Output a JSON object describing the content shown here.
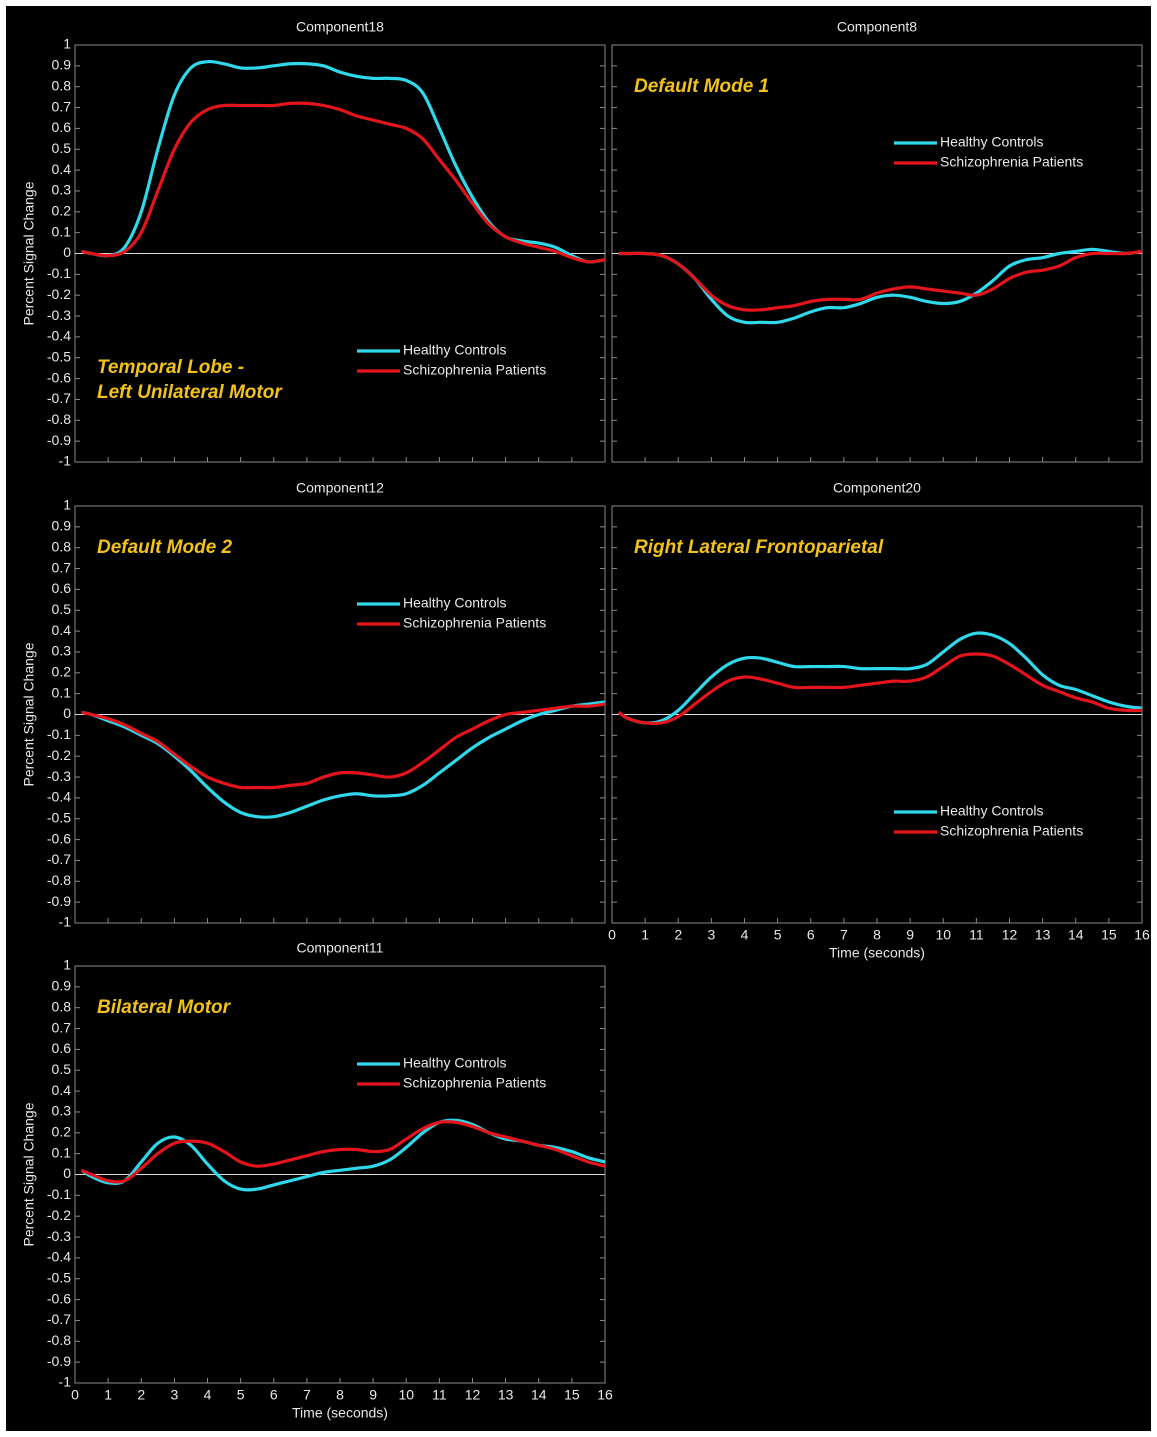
{
  "chart_data": [
    {
      "type": "line",
      "title": "Component18",
      "ylabel": "Percent Signal Change",
      "annotation": [
        "Temporal Lobe -",
        "Left Unilateral Motor"
      ],
      "annotation_position": "lower left",
      "legend": "lower right",
      "show_xtick_labels": false,
      "show_ytick_labels": true,
      "x": [
        0.2,
        0.5,
        1,
        1.5,
        2,
        2.5,
        3,
        3.5,
        4,
        4.5,
        5,
        5.5,
        6,
        6.5,
        7,
        7.5,
        8,
        8.5,
        9,
        9.5,
        10,
        10.5,
        11,
        11.5,
        12,
        12.5,
        13,
        13.5,
        14,
        14.5,
        15,
        15.5,
        16
      ],
      "series": [
        {
          "name": "Healthy Controls",
          "color": "#2fd8ea",
          "values": [
            0.01,
            0.0,
            -0.01,
            0.03,
            0.2,
            0.5,
            0.76,
            0.89,
            0.92,
            0.91,
            0.89,
            0.89,
            0.9,
            0.91,
            0.91,
            0.9,
            0.87,
            0.85,
            0.84,
            0.84,
            0.83,
            0.77,
            0.6,
            0.42,
            0.27,
            0.15,
            0.08,
            0.06,
            0.05,
            0.03,
            -0.01,
            -0.04,
            -0.03
          ]
        },
        {
          "name": "Schizophrenia Patients",
          "color": "#e3141c",
          "values": [
            0.01,
            0.0,
            -0.01,
            0.01,
            0.1,
            0.3,
            0.5,
            0.63,
            0.69,
            0.71,
            0.71,
            0.71,
            0.71,
            0.72,
            0.72,
            0.71,
            0.69,
            0.66,
            0.64,
            0.62,
            0.6,
            0.55,
            0.45,
            0.35,
            0.24,
            0.14,
            0.08,
            0.05,
            0.03,
            0.01,
            -0.02,
            -0.04,
            -0.03
          ]
        }
      ],
      "xlim": [
        0,
        16
      ],
      "xticks": [
        0,
        1,
        2,
        3,
        4,
        5,
        6,
        7,
        8,
        9,
        10,
        11,
        12,
        13,
        14,
        15,
        16
      ],
      "ylim": [
        -1,
        1
      ],
      "yticks": [
        -1,
        -0.9,
        -0.8,
        -0.7,
        -0.6,
        -0.5,
        -0.4,
        -0.3,
        -0.2,
        -0.1,
        0,
        0.1,
        0.2,
        0.3,
        0.4,
        0.5,
        0.6,
        0.7,
        0.8,
        0.9,
        1
      ]
    },
    {
      "type": "line",
      "title": "Component8",
      "annotation": [
        "Default Mode 1"
      ],
      "annotation_position": "upper left",
      "legend": "upper right",
      "show_xtick_labels": false,
      "show_ytick_labels": false,
      "x": [
        0.2,
        0.5,
        1,
        1.5,
        2,
        2.5,
        3,
        3.5,
        4,
        4.5,
        5,
        5.5,
        6,
        6.5,
        7,
        7.5,
        8,
        8.5,
        9,
        9.5,
        10,
        10.5,
        11,
        11.5,
        12,
        12.5,
        13,
        13.5,
        14,
        14.5,
        15,
        15.5,
        16
      ],
      "series": [
        {
          "name": "Healthy Controls",
          "color": "#2fd8ea",
          "values": [
            0,
            0,
            0,
            -0.01,
            -0.05,
            -0.12,
            -0.22,
            -0.3,
            -0.33,
            -0.33,
            -0.33,
            -0.31,
            -0.28,
            -0.26,
            -0.26,
            -0.24,
            -0.21,
            -0.2,
            -0.21,
            -0.23,
            -0.24,
            -0.23,
            -0.19,
            -0.13,
            -0.06,
            -0.03,
            -0.02,
            0.0,
            0.01,
            0.02,
            0.01,
            0.0,
            0.01
          ]
        },
        {
          "name": "Schizophrenia Patients",
          "color": "#e3141c",
          "values": [
            0,
            0,
            0,
            -0.01,
            -0.05,
            -0.12,
            -0.2,
            -0.25,
            -0.27,
            -0.27,
            -0.26,
            -0.25,
            -0.23,
            -0.22,
            -0.22,
            -0.22,
            -0.19,
            -0.17,
            -0.16,
            -0.17,
            -0.18,
            -0.19,
            -0.2,
            -0.17,
            -0.12,
            -0.09,
            -0.08,
            -0.06,
            -0.02,
            0,
            0,
            0,
            0.01
          ]
        }
      ],
      "xlim": [
        0,
        16
      ],
      "xticks": [
        0,
        1,
        2,
        3,
        4,
        5,
        6,
        7,
        8,
        9,
        10,
        11,
        12,
        13,
        14,
        15,
        16
      ],
      "ylim": [
        -1,
        1
      ],
      "yticks": [
        -1,
        -0.9,
        -0.8,
        -0.7,
        -0.6,
        -0.5,
        -0.4,
        -0.3,
        -0.2,
        -0.1,
        0,
        0.1,
        0.2,
        0.3,
        0.4,
        0.5,
        0.6,
        0.7,
        0.8,
        0.9,
        1
      ]
    },
    {
      "type": "line",
      "title": "Component12",
      "ylabel": "Percent Signal Change",
      "annotation": [
        "Default Mode 2"
      ],
      "annotation_position": "upper left",
      "legend": "upper right",
      "show_xtick_labels": false,
      "show_ytick_labels": true,
      "x": [
        0.2,
        0.5,
        1,
        1.5,
        2,
        2.5,
        3,
        3.5,
        4,
        4.5,
        5,
        5.5,
        6,
        6.5,
        7,
        7.5,
        8,
        8.5,
        9,
        9.5,
        10,
        10.5,
        11,
        11.5,
        12,
        12.5,
        13,
        13.5,
        14,
        14.5,
        15,
        15.5,
        16
      ],
      "series": [
        {
          "name": "Healthy Controls",
          "color": "#2fd8ea",
          "values": [
            0.01,
            0.0,
            -0.03,
            -0.06,
            -0.1,
            -0.14,
            -0.2,
            -0.27,
            -0.35,
            -0.42,
            -0.47,
            -0.49,
            -0.49,
            -0.47,
            -0.44,
            -0.41,
            -0.39,
            -0.38,
            -0.39,
            -0.39,
            -0.38,
            -0.34,
            -0.28,
            -0.22,
            -0.16,
            -0.11,
            -0.07,
            -0.03,
            0.0,
            0.02,
            0.04,
            0.05,
            0.06
          ]
        },
        {
          "name": "Schizophrenia Patients",
          "color": "#e3141c",
          "values": [
            0.01,
            0.0,
            -0.02,
            -0.05,
            -0.09,
            -0.13,
            -0.19,
            -0.25,
            -0.3,
            -0.33,
            -0.35,
            -0.35,
            -0.35,
            -0.34,
            -0.33,
            -0.3,
            -0.28,
            -0.28,
            -0.29,
            -0.3,
            -0.28,
            -0.23,
            -0.17,
            -0.11,
            -0.07,
            -0.03,
            0.0,
            0.01,
            0.02,
            0.03,
            0.04,
            0.04,
            0.05
          ]
        }
      ],
      "xlim": [
        0,
        16
      ],
      "xticks": [
        0,
        1,
        2,
        3,
        4,
        5,
        6,
        7,
        8,
        9,
        10,
        11,
        12,
        13,
        14,
        15,
        16
      ],
      "ylim": [
        -1,
        1
      ],
      "yticks": [
        -1,
        -0.9,
        -0.8,
        -0.7,
        -0.6,
        -0.5,
        -0.4,
        -0.3,
        -0.2,
        -0.1,
        0,
        0.1,
        0.2,
        0.3,
        0.4,
        0.5,
        0.6,
        0.7,
        0.8,
        0.9,
        1
      ]
    },
    {
      "type": "line",
      "title": "Component20",
      "xlabel": "Time (seconds)",
      "annotation": [
        "Right Lateral Frontoparietal"
      ],
      "annotation_position": "upper left",
      "legend": "lower right",
      "show_xtick_labels": true,
      "show_ytick_labels": false,
      "x": [
        0.2,
        0.5,
        1,
        1.5,
        2,
        2.5,
        3,
        3.5,
        4,
        4.5,
        5,
        5.5,
        6,
        6.5,
        7,
        7.5,
        8,
        8.5,
        9,
        9.5,
        10,
        10.5,
        11,
        11.5,
        12,
        12.5,
        13,
        13.5,
        14,
        14.5,
        15,
        15.5,
        16
      ],
      "series": [
        {
          "name": "Healthy Controls",
          "color": "#2fd8ea",
          "values": [
            0.01,
            -0.02,
            -0.04,
            -0.03,
            0.02,
            0.1,
            0.18,
            0.24,
            0.27,
            0.27,
            0.25,
            0.23,
            0.23,
            0.23,
            0.23,
            0.22,
            0.22,
            0.22,
            0.22,
            0.24,
            0.3,
            0.36,
            0.39,
            0.38,
            0.34,
            0.27,
            0.19,
            0.14,
            0.12,
            0.09,
            0.06,
            0.04,
            0.03
          ]
        },
        {
          "name": "Schizophrenia Patients",
          "color": "#e3141c",
          "values": [
            0.01,
            -0.02,
            -0.04,
            -0.04,
            -0.01,
            0.05,
            0.11,
            0.16,
            0.18,
            0.17,
            0.15,
            0.13,
            0.13,
            0.13,
            0.13,
            0.14,
            0.15,
            0.16,
            0.16,
            0.18,
            0.23,
            0.28,
            0.29,
            0.28,
            0.24,
            0.19,
            0.14,
            0.11,
            0.08,
            0.06,
            0.03,
            0.02,
            0.02
          ]
        }
      ],
      "xlim": [
        0,
        16
      ],
      "xticks": [
        0,
        1,
        2,
        3,
        4,
        5,
        6,
        7,
        8,
        9,
        10,
        11,
        12,
        13,
        14,
        15,
        16
      ],
      "ylim": [
        -1,
        1
      ],
      "yticks": [
        -1,
        -0.9,
        -0.8,
        -0.7,
        -0.6,
        -0.5,
        -0.4,
        -0.3,
        -0.2,
        -0.1,
        0,
        0.1,
        0.2,
        0.3,
        0.4,
        0.5,
        0.6,
        0.7,
        0.8,
        0.9,
        1
      ]
    },
    {
      "type": "line",
      "title": "Component11",
      "ylabel": "Percent Signal Change",
      "xlabel": "Time (seconds)",
      "annotation": [
        "Bilateral Motor"
      ],
      "annotation_position": "upper left",
      "legend": "upper right",
      "show_xtick_labels": true,
      "show_ytick_labels": true,
      "x": [
        0.2,
        0.5,
        1,
        1.5,
        2,
        2.5,
        3,
        3.5,
        4,
        4.5,
        5,
        5.5,
        6,
        6.5,
        7,
        7.5,
        8,
        8.5,
        9,
        9.5,
        10,
        10.5,
        11,
        11.5,
        12,
        12.5,
        13,
        13.5,
        14,
        14.5,
        15,
        15.5,
        16
      ],
      "series": [
        {
          "name": "Healthy Controls",
          "color": "#2fd8ea",
          "values": [
            0.02,
            -0.01,
            -0.04,
            -0.03,
            0.06,
            0.15,
            0.18,
            0.14,
            0.05,
            -0.03,
            -0.07,
            -0.07,
            -0.05,
            -0.03,
            -0.01,
            0.01,
            0.02,
            0.03,
            0.04,
            0.07,
            0.13,
            0.2,
            0.25,
            0.26,
            0.24,
            0.2,
            0.17,
            0.16,
            0.14,
            0.13,
            0.11,
            0.08,
            0.06
          ]
        },
        {
          "name": "Schizophrenia Patients",
          "color": "#e3141c",
          "values": [
            0.02,
            0.0,
            -0.03,
            -0.03,
            0.03,
            0.1,
            0.15,
            0.16,
            0.15,
            0.11,
            0.06,
            0.04,
            0.05,
            0.07,
            0.09,
            0.11,
            0.12,
            0.12,
            0.11,
            0.12,
            0.17,
            0.22,
            0.25,
            0.25,
            0.23,
            0.2,
            0.18,
            0.16,
            0.14,
            0.12,
            0.09,
            0.06,
            0.04
          ]
        }
      ],
      "xlim": [
        0,
        16
      ],
      "xticks": [
        0,
        1,
        2,
        3,
        4,
        5,
        6,
        7,
        8,
        9,
        10,
        11,
        12,
        13,
        14,
        15,
        16
      ],
      "ylim": [
        -1,
        1
      ],
      "yticks": [
        -1,
        -0.9,
        -0.8,
        -0.7,
        -0.6,
        -0.5,
        -0.4,
        -0.3,
        -0.2,
        -0.1,
        0,
        0.1,
        0.2,
        0.3,
        0.4,
        0.5,
        0.6,
        0.7,
        0.8,
        0.9,
        1
      ]
    }
  ]
}
